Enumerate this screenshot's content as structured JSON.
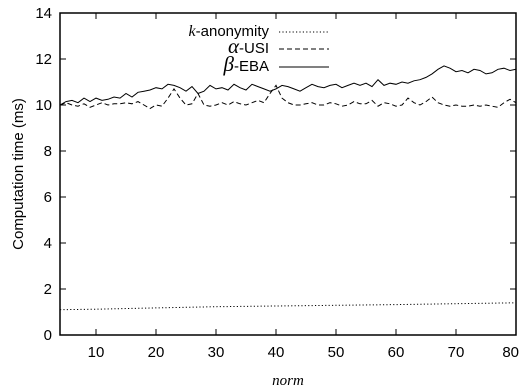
{
  "chart_data": {
    "type": "line",
    "title": "",
    "xlabel": "norm",
    "ylabel": "Computation time (ms)",
    "xlim": [
      4,
      80
    ],
    "ylim": [
      0,
      14
    ],
    "x_ticks": [
      10,
      20,
      30,
      40,
      50,
      60,
      70,
      80
    ],
    "y_ticks": [
      0,
      2,
      4,
      6,
      8,
      10,
      12,
      14
    ],
    "grid": false,
    "legend_position": "top-left",
    "series": [
      {
        "name_prefix": "k",
        "name_suffix": "-anonymity",
        "style": "dotted",
        "x": [
          4,
          10,
          20,
          30,
          40,
          50,
          60,
          70,
          80
        ],
        "values": [
          1.1,
          1.12,
          1.18,
          1.23,
          1.26,
          1.29,
          1.32,
          1.36,
          1.4
        ]
      },
      {
        "name_prefix": "α",
        "name_suffix": "-USI",
        "style": "dashed",
        "x": [
          4,
          5,
          6,
          7,
          8,
          9,
          10,
          11,
          12,
          13,
          14,
          15,
          16,
          17,
          18,
          19,
          20,
          21,
          22,
          23,
          24,
          25,
          26,
          27,
          28,
          29,
          30,
          31,
          32,
          33,
          34,
          35,
          36,
          37,
          38,
          39,
          40,
          41,
          42,
          43,
          44,
          45,
          46,
          47,
          48,
          49,
          50,
          51,
          52,
          53,
          54,
          55,
          56,
          57,
          58,
          59,
          60,
          61,
          62,
          63,
          64,
          65,
          66,
          67,
          68,
          69,
          70,
          71,
          72,
          73,
          74,
          75,
          76,
          77,
          78,
          79,
          80
        ],
        "values": [
          10.0,
          10.1,
          10.0,
          9.95,
          10.05,
          9.9,
          10.0,
          10.1,
          10.0,
          10.05,
          10.05,
          10.1,
          10.05,
          10.15,
          10.0,
          9.85,
          10.0,
          9.95,
          10.3,
          10.7,
          10.3,
          10.0,
          10.05,
          10.5,
          10.0,
          9.95,
          10.0,
          10.1,
          10.0,
          10.15,
          10.05,
          10.0,
          10.1,
          10.2,
          10.1,
          10.5,
          10.85,
          10.3,
          10.1,
          10.0,
          10.0,
          10.05,
          10.1,
          10.0,
          10.0,
          10.1,
          10.05,
          9.95,
          10.0,
          10.15,
          10.05,
          10.05,
          10.2,
          9.95,
          10.1,
          10.05,
          9.95,
          10.0,
          10.3,
          10.1,
          10.0,
          10.15,
          10.35,
          10.1,
          10.0,
          9.95,
          10.0,
          9.95,
          9.95,
          10.0,
          9.95,
          10.0,
          9.95,
          9.9,
          10.1,
          10.25,
          10.1
        ]
      },
      {
        "name_prefix": "β",
        "name_suffix": "-EBA",
        "style": "solid",
        "x": [
          4,
          5,
          6,
          7,
          8,
          9,
          10,
          11,
          12,
          13,
          14,
          15,
          16,
          17,
          18,
          19,
          20,
          21,
          22,
          23,
          24,
          25,
          26,
          27,
          28,
          29,
          30,
          31,
          32,
          33,
          34,
          35,
          36,
          37,
          38,
          39,
          40,
          41,
          42,
          43,
          44,
          45,
          46,
          47,
          48,
          49,
          50,
          51,
          52,
          53,
          54,
          55,
          56,
          57,
          58,
          59,
          60,
          61,
          62,
          63,
          64,
          65,
          66,
          67,
          68,
          69,
          70,
          71,
          72,
          73,
          74,
          75,
          76,
          77,
          78,
          79,
          80
        ],
        "values": [
          10.0,
          10.15,
          10.2,
          10.1,
          10.3,
          10.15,
          10.3,
          10.2,
          10.25,
          10.35,
          10.3,
          10.5,
          10.35,
          10.55,
          10.6,
          10.65,
          10.75,
          10.7,
          10.9,
          10.85,
          10.75,
          10.6,
          10.8,
          10.5,
          10.6,
          10.85,
          10.7,
          10.75,
          10.65,
          10.9,
          10.75,
          10.65,
          10.9,
          10.8,
          10.7,
          10.6,
          10.7,
          10.85,
          10.8,
          10.7,
          10.6,
          10.75,
          10.9,
          10.8,
          10.75,
          10.85,
          10.9,
          10.75,
          10.85,
          10.95,
          10.85,
          10.95,
          10.8,
          11.1,
          10.85,
          10.95,
          10.9,
          11.0,
          10.95,
          11.05,
          11.1,
          11.2,
          11.35,
          11.55,
          11.7,
          11.6,
          11.45,
          11.5,
          11.4,
          11.55,
          11.5,
          11.35,
          11.4,
          11.55,
          11.6,
          11.5,
          11.55
        ]
      }
    ]
  }
}
